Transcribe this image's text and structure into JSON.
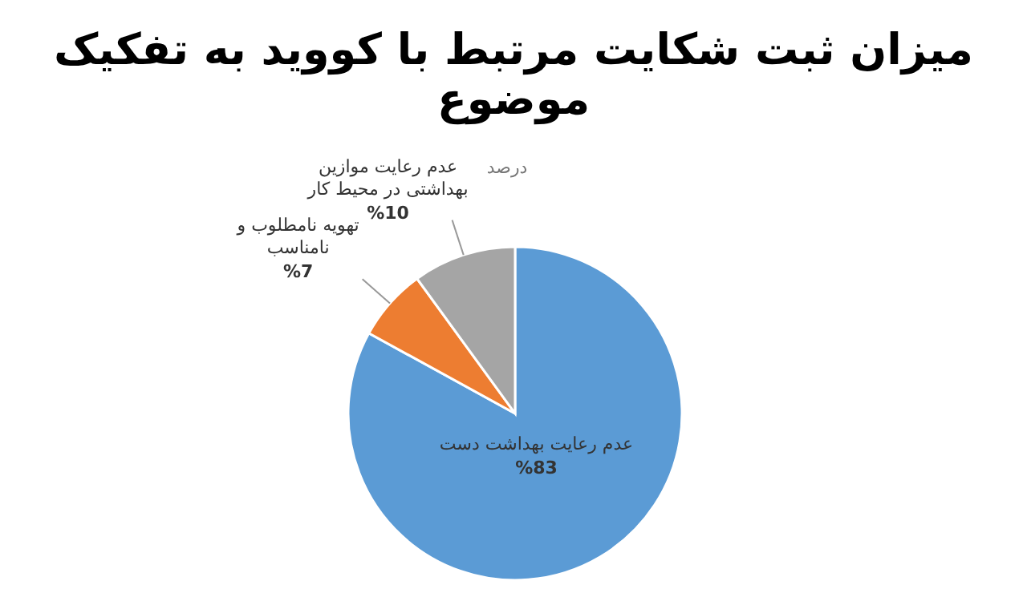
{
  "chart_data": {
    "type": "pie",
    "title": "میزان ثبت شکایت مرتبط با کووید به تفکیک موضوع",
    "subtitle": "درصد",
    "categories": [
      "عدم رعایت بهداشت دست",
      "تهویه نامطلوب و نامناسب",
      "عدم رعایت موازین بهداشتی در محیط کار"
    ],
    "values": [
      83,
      7,
      10
    ],
    "colors": [
      "#5b9bd5",
      "#ed7d31",
      "#a5a5a5"
    ],
    "value_labels": [
      "%83",
      "%7",
      "%10"
    ],
    "legend": false
  }
}
